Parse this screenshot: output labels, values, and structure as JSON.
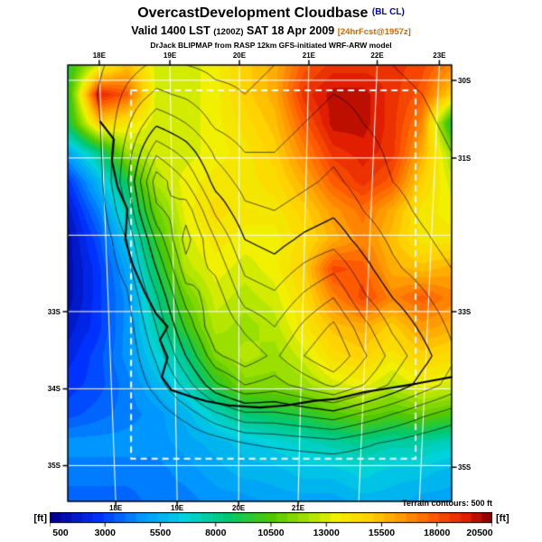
{
  "header": {
    "title": "OvercastDevelopment Cloudbase",
    "title_tag": "(BL CL)",
    "valid_prefix": "Valid 1400 LST",
    "valid_z": "(1200Z)",
    "valid_date": "SAT 18 Apr 2009",
    "fcst_tag": "[24hrFcst@1957z]",
    "attribution": "DrJack BLIPMAP from RASP 12km GFS-initiated WRF-ARW model"
  },
  "footer": {
    "terrain_note": "Terrain contours: 500 ft",
    "units_left": "[ft]",
    "units_right": "[ft]"
  },
  "colors": {
    "title_tag": "#0000c8",
    "fcst_tag": "#d26400",
    "graticule": "#ffffff",
    "contour": "#000000"
  },
  "chart_data": {
    "type": "heatmap",
    "title": "OvercastDevelopment Cloudbase (BL CL)",
    "subtitle": "Valid 1400 LST (1200Z) SAT 18 Apr 2009 [24hrFcst@1957z]",
    "units": "ft",
    "axes": {
      "top": [
        {
          "label": "18E",
          "f": 0.082
        },
        {
          "label": "19E",
          "f": 0.266
        },
        {
          "label": "20E",
          "f": 0.447
        },
        {
          "label": "21E",
          "f": 0.628
        },
        {
          "label": "22E",
          "f": 0.806
        },
        {
          "label": "23E",
          "f": 0.968
        }
      ],
      "bottom": [
        {
          "label": "18E",
          "f": 0.125
        },
        {
          "label": "19E",
          "f": 0.285
        },
        {
          "label": "20E",
          "f": 0.445
        },
        {
          "label": "21E",
          "f": 0.6
        }
      ],
      "left": [
        {
          "label": "33S",
          "f": 0.565
        },
        {
          "label": "34S",
          "f": 0.742
        },
        {
          "label": "35S",
          "f": 0.918
        }
      ],
      "right": [
        {
          "label": "30S",
          "f": 0.035
        },
        {
          "label": "31S",
          "f": 0.213
        },
        {
          "label": "33S",
          "f": 0.565
        },
        {
          "label": "35S",
          "f": 0.922
        }
      ]
    },
    "graticule": {
      "lon_lines": [
        {
          "topF": 0.082,
          "botF": 0.125
        },
        {
          "topF": 0.266,
          "botF": 0.285
        },
        {
          "topF": 0.447,
          "botF": 0.445
        },
        {
          "topF": 0.628,
          "botF": 0.6
        },
        {
          "topF": 0.806,
          "botF": 0.758
        },
        {
          "topF": 0.968,
          "botF": 0.916
        }
      ],
      "lat_fracs": [
        0.035,
        0.213,
        0.39,
        0.565,
        0.742,
        0.918
      ]
    },
    "inner_domain": {
      "x0": 0.165,
      "y0": 0.058,
      "x1": 0.906,
      "y1": 0.902
    },
    "colorbar": {
      "min": 500,
      "max": 20500,
      "step": 500,
      "tick_values": [
        500,
        3000,
        5500,
        8000,
        10500,
        13000,
        15500,
        18000,
        20500
      ],
      "stops": [
        [
          500,
          "#000096"
        ],
        [
          2500,
          "#0032ff"
        ],
        [
          4500,
          "#0096ff"
        ],
        [
          6500,
          "#00d2dc"
        ],
        [
          8500,
          "#00c86e"
        ],
        [
          10500,
          "#50c800"
        ],
        [
          12500,
          "#b4e600"
        ],
        [
          13500,
          "#f0f000"
        ],
        [
          15000,
          "#ffd200"
        ],
        [
          16500,
          "#ff9b00"
        ],
        [
          18000,
          "#ff5a00"
        ],
        [
          19500,
          "#e11e00"
        ],
        [
          20500,
          "#960000"
        ]
      ]
    },
    "grid": {
      "cols": 14,
      "rows": 16,
      "values_kft": [
        [
          9.5,
          13,
          15.5,
          13,
          13,
          13.5,
          15,
          16,
          18,
          19,
          19,
          19,
          18.5,
          17
        ],
        [
          9.5,
          19.5,
          18,
          13,
          13,
          13.5,
          15,
          16,
          19,
          20,
          20,
          19,
          18,
          15
        ],
        [
          9,
          15,
          14,
          13,
          13,
          13.5,
          14.5,
          15.5,
          18,
          20,
          20,
          19,
          17,
          9
        ],
        [
          5,
          8,
          12,
          13,
          13,
          13.5,
          14,
          15,
          17,
          19,
          19.5,
          19,
          16,
          12
        ],
        [
          2.5,
          5.5,
          9,
          12.5,
          13.5,
          14,
          14,
          14.5,
          16,
          18,
          19,
          18,
          15,
          13
        ],
        [
          1.5,
          4,
          7.5,
          11,
          13.5,
          14.5,
          14,
          14,
          15,
          16.5,
          17.5,
          16,
          14,
          13.5
        ],
        [
          1,
          3,
          6,
          10,
          13,
          14,
          13.5,
          13.5,
          14.5,
          16,
          17,
          15.5,
          14,
          14
        ],
        [
          1,
          2.5,
          5,
          9,
          12.5,
          13.5,
          13,
          13.5,
          15,
          18.5,
          18,
          16,
          15.5,
          16
        ],
        [
          1,
          2.5,
          4.5,
          8,
          11,
          13,
          12.5,
          13,
          14.5,
          17,
          18.5,
          17,
          18,
          17
        ],
        [
          1.5,
          2.5,
          4.5,
          7.5,
          10,
          12.5,
          12,
          12.5,
          14,
          15.5,
          16,
          15,
          16.5,
          16
        ],
        [
          2,
          3,
          4.5,
          6.5,
          8,
          11.5,
          12.5,
          12,
          13,
          14.5,
          15,
          14,
          15,
          14.5
        ],
        [
          2.5,
          3,
          4,
          5.5,
          7,
          9.5,
          11.5,
          11.5,
          12,
          13,
          13.5,
          12.5,
          13.5,
          13
        ],
        [
          3,
          3.5,
          4,
          4.5,
          5.5,
          7,
          8.5,
          9,
          9.5,
          10.5,
          11,
          10.5,
          11,
          10.5
        ],
        [
          4.5,
          4.5,
          4.5,
          4.5,
          5,
          5.5,
          6,
          6.5,
          7,
          7.5,
          8,
          7.5,
          7.5,
          7
        ],
        [
          4,
          4,
          4,
          4,
          4.5,
          5,
          5.5,
          5.5,
          6,
          6,
          6.5,
          6,
          6,
          5.5
        ],
        [
          3.5,
          3.5,
          3.5,
          4,
          4,
          4.5,
          4.5,
          5,
          5,
          5,
          5.5,
          5.5,
          5,
          5
        ]
      ]
    },
    "terrain": {
      "cols": 14,
      "rows": 16,
      "level_start": 500,
      "level_step": 500,
      "values_ft": [
        [
          0,
          400,
          800,
          1100,
          1000,
          900,
          900,
          1000,
          1200,
          1300,
          1200,
          1000,
          800,
          600
        ],
        [
          0,
          500,
          1100,
          1600,
          1400,
          1100,
          1000,
          1100,
          1300,
          1500,
          1400,
          1200,
          1000,
          800
        ],
        [
          0,
          400,
          1400,
          2400,
          2000,
          1400,
          1200,
          1300,
          1500,
          1700,
          1500,
          1300,
          1100,
          900
        ],
        [
          0,
          300,
          1700,
          3400,
          2800,
          1900,
          1500,
          1500,
          1700,
          1900,
          1700,
          1400,
          1200,
          1000
        ],
        [
          0,
          200,
          1900,
          4300,
          3500,
          2300,
          1800,
          1700,
          1900,
          2100,
          1800,
          1500,
          1300,
          1100
        ],
        [
          0,
          100,
          1500,
          3900,
          4300,
          2900,
          2100,
          2000,
          2200,
          2400,
          2000,
          1700,
          1400,
          1200
        ],
        [
          0,
          0,
          1000,
          3100,
          4700,
          3500,
          2500,
          2300,
          2600,
          2800,
          2300,
          1900,
          1600,
          1300
        ],
        [
          0,
          0,
          700,
          2500,
          4300,
          3900,
          2900,
          2700,
          3100,
          3400,
          2700,
          2100,
          1800,
          1500
        ],
        [
          0,
          0,
          400,
          1900,
          3700,
          4300,
          3300,
          3100,
          3600,
          4000,
          3100,
          2500,
          2100,
          1700
        ],
        [
          0,
          0,
          200,
          1500,
          3100,
          4500,
          3900,
          3500,
          4100,
          4600,
          3700,
          2900,
          2400,
          1900
        ],
        [
          0,
          0,
          100,
          1100,
          2500,
          3900,
          4300,
          3900,
          4500,
          5000,
          4100,
          3300,
          2700,
          2100
        ],
        [
          0,
          0,
          0,
          700,
          1700,
          2900,
          3500,
          3300,
          3700,
          4100,
          3500,
          2900,
          2300,
          1800
        ],
        [
          0,
          0,
          0,
          200,
          700,
          1400,
          1900,
          1900,
          2100,
          2300,
          1900,
          1500,
          1100,
          800
        ],
        [
          0,
          0,
          0,
          0,
          0,
          200,
          500,
          600,
          700,
          800,
          600,
          400,
          200,
          0
        ],
        [
          0,
          0,
          0,
          0,
          0,
          0,
          0,
          0,
          0,
          0,
          0,
          0,
          0,
          0
        ],
        [
          0,
          0,
          0,
          0,
          0,
          0,
          0,
          0,
          0,
          0,
          0,
          0,
          0,
          0
        ]
      ]
    },
    "coastline": [
      [
        0.085,
        0.13
      ],
      [
        0.12,
        0.17
      ],
      [
        0.115,
        0.22
      ],
      [
        0.13,
        0.28
      ],
      [
        0.155,
        0.33
      ],
      [
        0.15,
        0.4
      ],
      [
        0.17,
        0.46
      ],
      [
        0.2,
        0.52
      ],
      [
        0.23,
        0.57
      ],
      [
        0.26,
        0.6
      ],
      [
        0.24,
        0.63
      ],
      [
        0.26,
        0.67
      ],
      [
        0.245,
        0.715
      ],
      [
        0.27,
        0.745
      ],
      [
        0.32,
        0.76
      ],
      [
        0.36,
        0.77
      ],
      [
        0.42,
        0.78
      ],
      [
        0.5,
        0.785
      ],
      [
        0.57,
        0.78
      ],
      [
        0.64,
        0.77
      ],
      [
        0.7,
        0.765
      ],
      [
        0.77,
        0.75
      ],
      [
        0.84,
        0.74
      ],
      [
        0.91,
        0.73
      ],
      [
        0.97,
        0.72
      ],
      [
        1.0,
        0.715
      ]
    ]
  }
}
